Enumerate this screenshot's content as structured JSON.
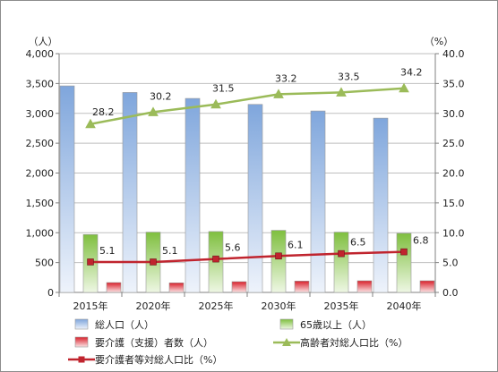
{
  "chart_data": {
    "type": "bar",
    "categories": [
      "2015年",
      "2020年",
      "2025年",
      "2030年",
      "2035年",
      "2040年"
    ],
    "y_left": {
      "unit_label": "（人）",
      "min": 0,
      "max": 4000,
      "step": 500,
      "tick_labels": [
        "0",
        "500",
        "1,000",
        "1,500",
        "2,000",
        "2,500",
        "3,000",
        "3,500",
        "4,000"
      ]
    },
    "y_right": {
      "unit_label": "（%）",
      "min": 0,
      "max": 40,
      "step": 5,
      "tick_labels": [
        "0.0",
        "5.0",
        "10.0",
        "15.0",
        "20.0",
        "25.0",
        "30.0",
        "35.0",
        "40.0"
      ]
    },
    "series": [
      {
        "name": "総人口（人）",
        "kind": "bar",
        "axis": "left",
        "color_top": "#7fa6dc",
        "color_bottom": "#eef3fb",
        "values": [
          3460,
          3350,
          3250,
          3150,
          3040,
          2920
        ]
      },
      {
        "name": "65歳以上（人）",
        "kind": "bar",
        "axis": "left",
        "color_top": "#7fbf3f",
        "color_bottom": "#eef7e4",
        "values": [
          970,
          1010,
          1020,
          1040,
          1010,
          990
        ]
      },
      {
        "name": "要介護（支援）者数（人）",
        "kind": "bar",
        "axis": "left",
        "color_top": "#d9202b",
        "color_bottom": "#fbe4e5",
        "values": [
          165,
          160,
          180,
          190,
          195,
          195
        ]
      },
      {
        "name": "高齢者対総人口比（%）",
        "kind": "line",
        "axis": "right",
        "color": "#9bbb59",
        "marker": "triangle",
        "values": [
          28.2,
          30.2,
          31.5,
          33.2,
          33.5,
          34.2
        ],
        "labels": [
          "28.2",
          "30.2",
          "31.5",
          "33.2",
          "33.5",
          "34.2"
        ]
      },
      {
        "name": "要介護者等対総人口比（%）",
        "kind": "line",
        "axis": "right",
        "color": "#c0242e",
        "marker": "square",
        "values": [
          5.1,
          5.1,
          5.6,
          6.1,
          6.5,
          6.8
        ],
        "labels": [
          "5.1",
          "5.1",
          "5.6",
          "6.1",
          "6.5",
          "6.8"
        ]
      }
    ],
    "gridlines": true,
    "legend_position": "bottom"
  }
}
